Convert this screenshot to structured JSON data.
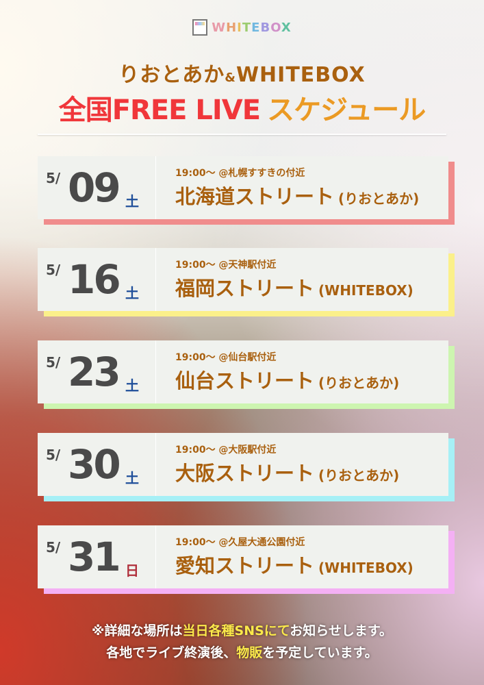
{
  "logo": {
    "text": "WHITEBOX",
    "letters": [
      "W",
      "H",
      "I",
      "T",
      "E",
      "B",
      "O",
      "X"
    ]
  },
  "title": {
    "line1_main": "りおとあか",
    "line1_amp": "&",
    "line1_tail": "WHITEBOX",
    "line2_red": "全国FREE LIVE",
    "line2_orange": "スケジュール"
  },
  "colors": {
    "brown": "#a9600f",
    "red": "#f0363a",
    "orange": "#eb9a24",
    "saturday": "#1f4f9a",
    "sunday": "#b0303c"
  },
  "events": [
    {
      "month": "5/",
      "day": "09",
      "weekday": "土",
      "weekday_color": "#1f4f9a",
      "time": "19:00～ @札幌すすきの付近",
      "place": "北海道ストリート",
      "performer": "(りおとあか)",
      "accent": "#f08c8c"
    },
    {
      "month": "5/",
      "day": "16",
      "weekday": "土",
      "weekday_color": "#1f4f9a",
      "time": "19:00～ @天神駅付近",
      "place": "福岡ストリート",
      "performer": "(WHITEBOX)",
      "accent": "#fbf08a"
    },
    {
      "month": "5/",
      "day": "23",
      "weekday": "土",
      "weekday_color": "#1f4f9a",
      "time": "19:00～ @仙台駅付近",
      "place": "仙台ストリート",
      "performer": "(りおとあか)",
      "accent": "#cdf5b0"
    },
    {
      "month": "5/",
      "day": "30",
      "weekday": "土",
      "weekday_color": "#1f4f9a",
      "time": "19:00～ @大阪駅付近",
      "place": "大阪ストリート",
      "performer": "(りおとあか)",
      "accent": "#a6f0f6"
    },
    {
      "month": "5/",
      "day": "31",
      "weekday": "日",
      "weekday_color": "#b0303c",
      "time": "19:00～ @久屋大通公園付近",
      "place": "愛知ストリート",
      "performer": "(WHITEBOX)",
      "accent": "#f4b0f4"
    }
  ],
  "notes": {
    "line1": [
      "※詳細な場所は",
      "当日各種SNSにて",
      "お知らせします。"
    ],
    "line2": [
      "各地でライブ終演後、",
      "物販",
      "を予定しています。"
    ]
  }
}
